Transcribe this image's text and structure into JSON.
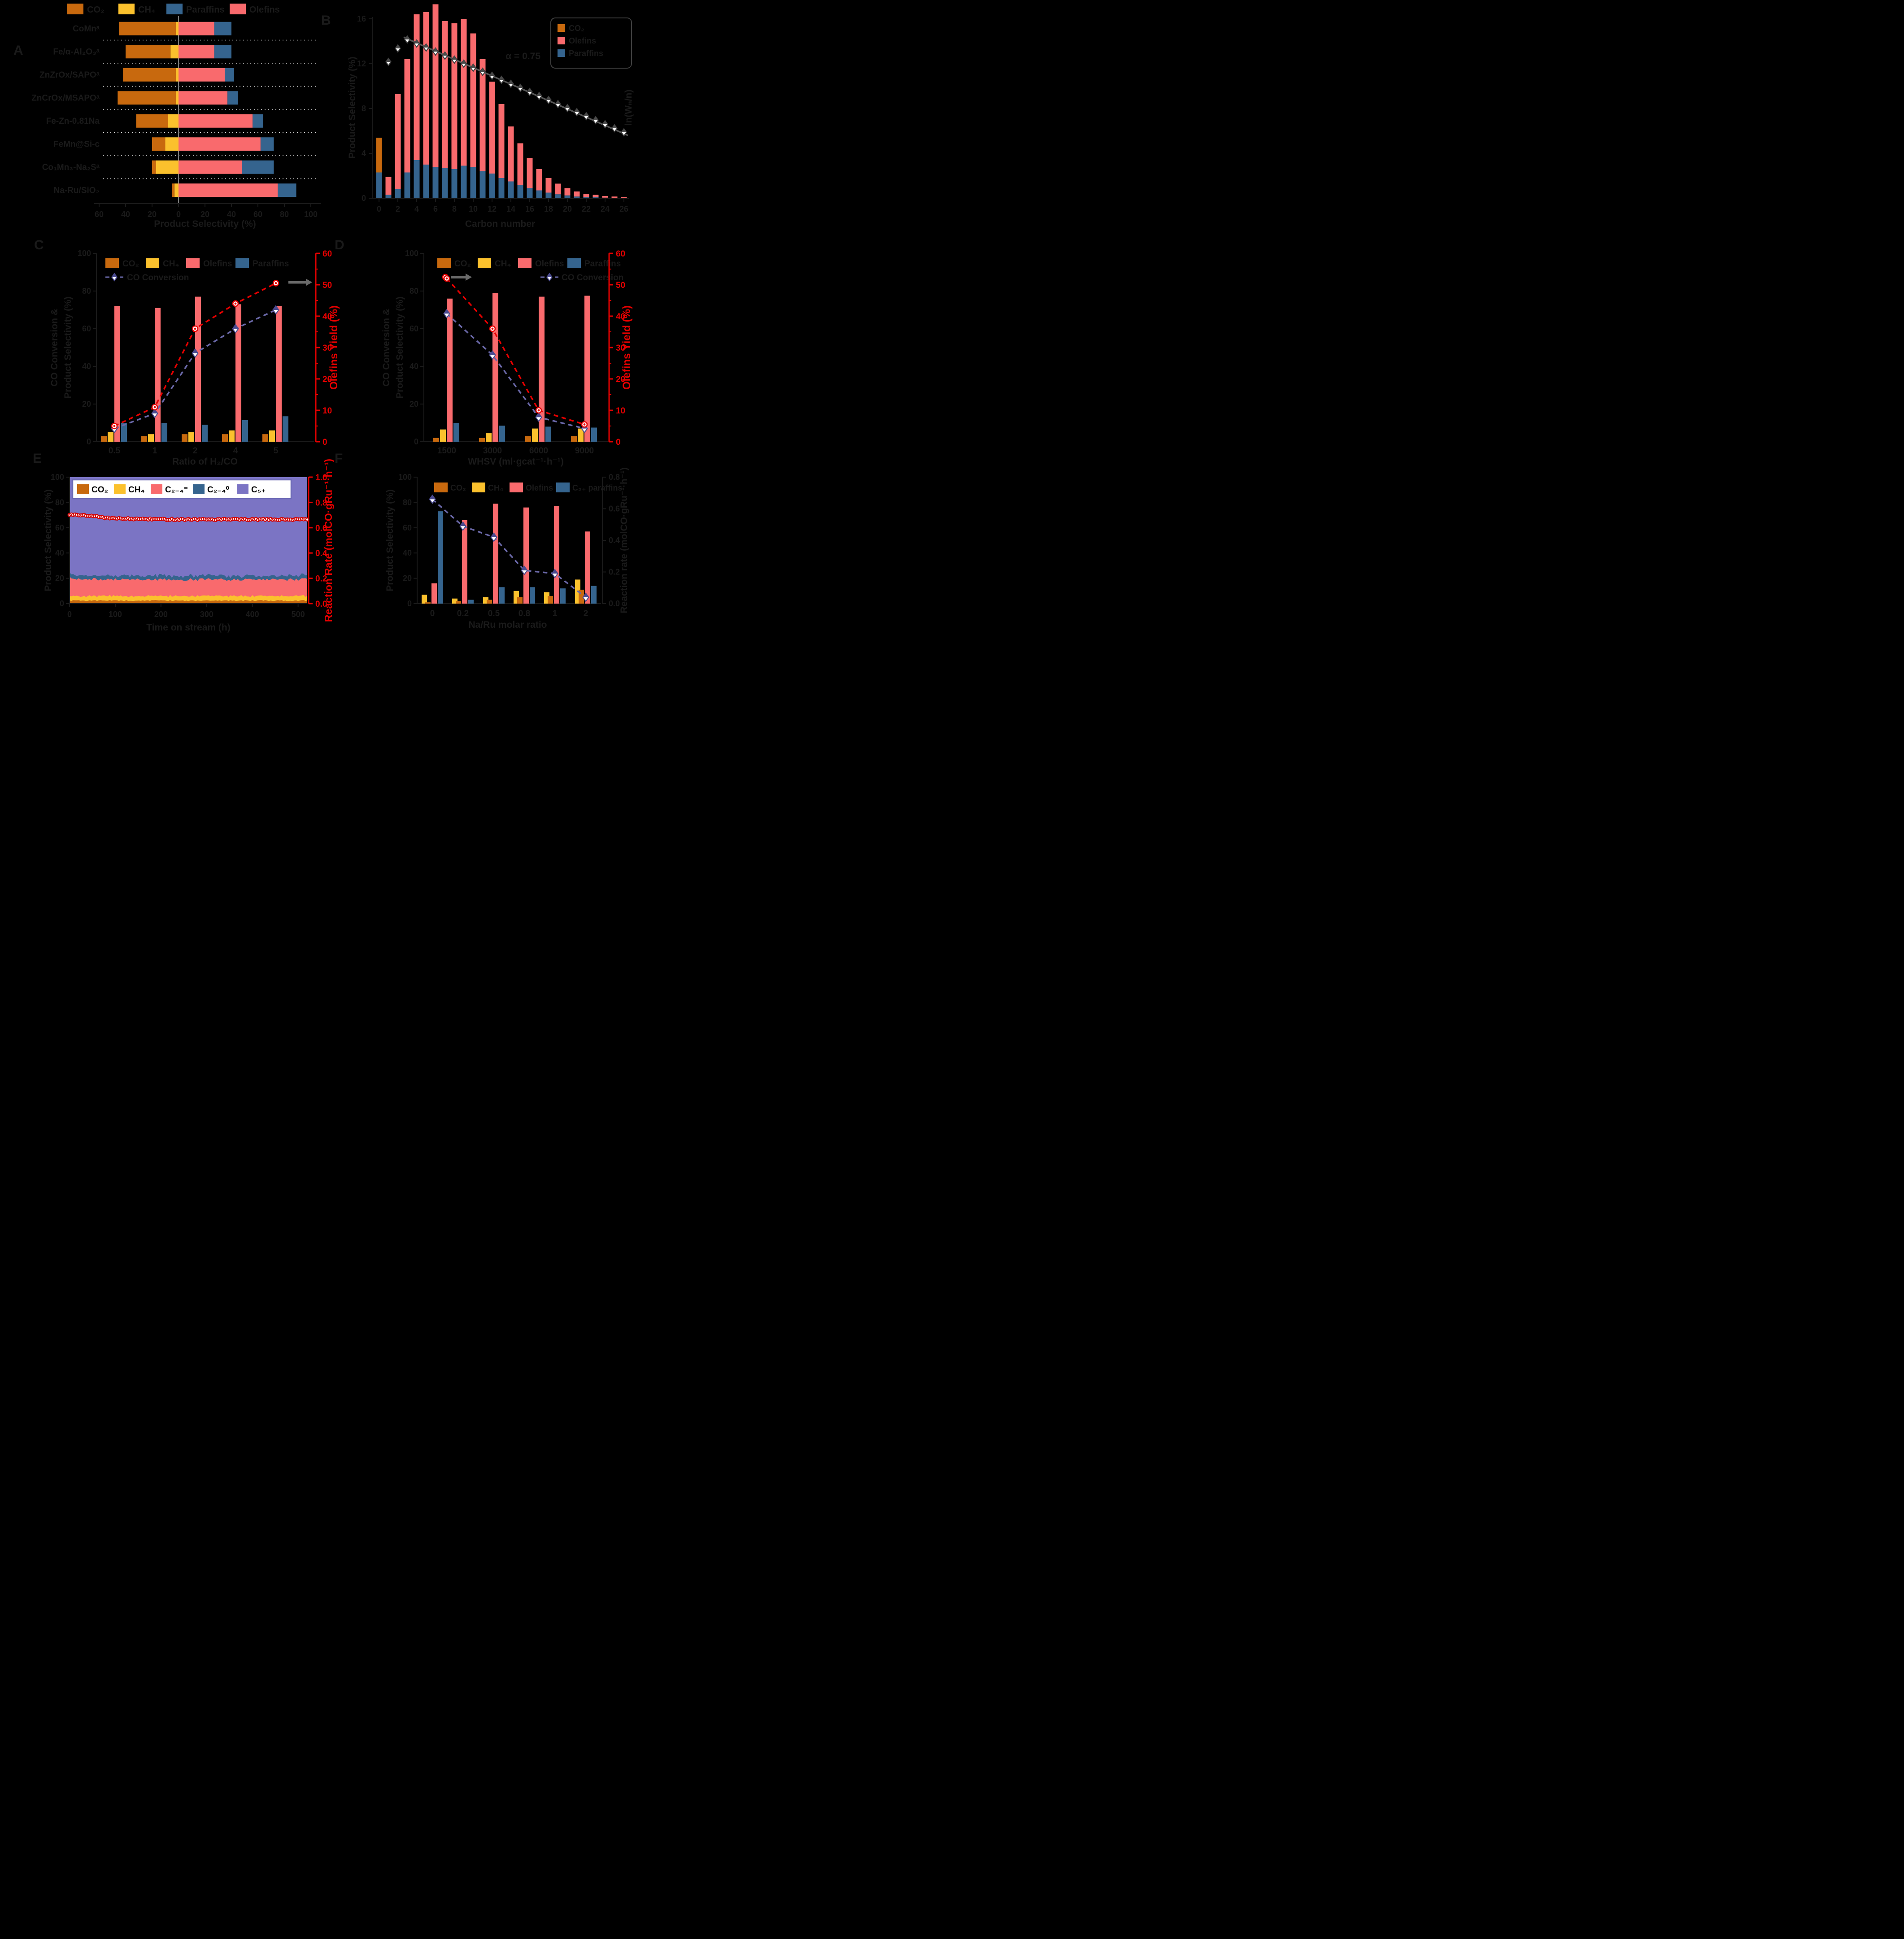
{
  "colors": {
    "co2": "#C8690E",
    "ch4": "#FBC12D",
    "olefins": "#F96A6D",
    "paraffins": "#35648E",
    "c5plus": "#7B74C4",
    "red": "#E60000",
    "navy": "#4A4A8F",
    "navy_line": "#6A68A8",
    "gray": "#5C5C5C",
    "asf_gray": "#555555",
    "separator": "#D8D8D8",
    "legend_box_border": "#6B69B5"
  },
  "panels": {
    "A": {
      "label": "A",
      "legend": [
        {
          "label": "CO₂",
          "color": "co2"
        },
        {
          "label": "CH₄",
          "color": "ch4"
        },
        {
          "label": "Paraffins",
          "color": "paraffins"
        },
        {
          "label": "Olefins",
          "color": "olefins"
        }
      ],
      "chart_data": {
        "type": "bar",
        "orientation": "horizontal-diverging",
        "xlabel": "Product Selectivity (%)",
        "x_ticks": [
          "60",
          "40",
          "20",
          "0",
          "20",
          "40",
          "60",
          "80",
          "100"
        ],
        "categories": [
          "CoMnᵃ",
          "Fe/α-Al₂O₃ᵃ",
          "ZnZrOx/SAPOᵃ",
          "ZnCrOx/MSAPOᵃ",
          "Fe-Zn-0.81Na",
          "FeMn@Si-c",
          "Co₁Mn₃-Na₂Sᵃ",
          "Na-Ru/SiO₂"
        ],
        "series": [
          {
            "name": "CO₂",
            "values": [
              43,
              34,
              40,
              44,
              24,
              10,
              3,
              2
            ]
          },
          {
            "name": "CH₄",
            "values": [
              2,
              6,
              2,
              2,
              8,
              10,
              17,
              3
            ]
          },
          {
            "name": "Olefins",
            "values": [
              27,
              27,
              35,
              37,
              56,
              62,
              48,
              75
            ]
          },
          {
            "name": "Paraffins",
            "values": [
              13,
              13,
              7,
              8,
              8,
              10,
              24,
              14
            ]
          }
        ]
      }
    },
    "B": {
      "label": "B",
      "legend": [
        {
          "label": "CO₂",
          "color": "co2"
        },
        {
          "label": "Olefins",
          "color": "olefins"
        },
        {
          "label": "Paraffins",
          "color": "paraffins"
        }
      ],
      "chart_data": {
        "type": "bar",
        "xlabel": "Carbon number",
        "ylabel": "Product Selectivity (%)",
        "right_label": "ln(Wₙ/n)",
        "y_ticks": [
          0,
          4,
          8,
          12,
          16
        ],
        "x_ticks": [
          0,
          2,
          4,
          6,
          8,
          10,
          12,
          14,
          16,
          18,
          20,
          22,
          24,
          26
        ],
        "co2_bar": {
          "x": 0,
          "total": 5.4,
          "paraffins_part": 2.3
        },
        "carbon_numbers": [
          1,
          2,
          3,
          4,
          5,
          6,
          7,
          8,
          9,
          10,
          11,
          12,
          13,
          14,
          15,
          16,
          17,
          18,
          19,
          20,
          21,
          22,
          23,
          24,
          25,
          26
        ],
        "totals": [
          1.9,
          9.3,
          12.4,
          16.4,
          16.6,
          17.3,
          15.8,
          15.6,
          16.0,
          14.7,
          12.4,
          10.4,
          8.4,
          6.4,
          4.9,
          3.6,
          2.6,
          1.8,
          1.3,
          0.9,
          0.6,
          0.4,
          0.3,
          0.2,
          0.15,
          0.1
        ],
        "paraffins": [
          0.3,
          0.8,
          2.3,
          3.4,
          3.0,
          2.8,
          2.7,
          2.6,
          2.9,
          2.8,
          2.4,
          2.2,
          1.8,
          1.5,
          1.2,
          0.9,
          0.7,
          0.5,
          0.35,
          0.25,
          0.15,
          0.1,
          0.08,
          0.05,
          0.04,
          0.03
        ],
        "asf": {
          "annotation": "α = 0.75",
          "alpha": 0.75,
          "deviations": [
            {
              "n": 1,
              "dy": 50
            },
            {
              "n": 2,
              "dy": 20
            }
          ]
        }
      }
    },
    "C": {
      "label": "C",
      "legend": [
        {
          "label": "CO₂",
          "color": "co2"
        },
        {
          "label": "CH₄",
          "color": "ch4"
        },
        {
          "label": "Olefins",
          "color": "olefins"
        },
        {
          "label": "Paraffins",
          "color": "paraffins"
        }
      ],
      "line_legend": "CO Conversion",
      "chart_data": {
        "type": "grouped-bar+lines",
        "categories": [
          "0.5",
          "1",
          "2",
          "4",
          "5"
        ],
        "xlabel": "Ratio of H₂/CO",
        "left_label_1": "CO Conversion &",
        "left_label_2": "Product Selectivity (%)",
        "left_ticks": [
          0,
          20,
          40,
          60,
          80,
          100
        ],
        "right": {
          "label": "Olefins Yield (%)",
          "ticks": [
            0,
            10,
            20,
            30,
            40,
            50,
            60
          ]
        },
        "bars": {
          "co2": [
            3,
            3,
            4,
            4,
            4
          ],
          "ch4": [
            5,
            4,
            5,
            6,
            6
          ],
          "olefins": [
            72,
            71,
            77,
            73,
            72
          ],
          "paraffins": [
            10,
            10,
            9,
            11.5,
            13.5
          ]
        },
        "olefins_yield": [
          5,
          11,
          36,
          44,
          50.5
        ],
        "co_conversion": [
          7,
          15,
          47,
          60,
          70
        ]
      }
    },
    "D": {
      "label": "D",
      "legend": [
        {
          "label": "CO₂",
          "color": "co2"
        },
        {
          "label": "CH₄",
          "color": "ch4"
        },
        {
          "label": "Olefins",
          "color": "olefins"
        },
        {
          "label": "Paraffins",
          "color": "paraffins"
        }
      ],
      "line_legend": "CO Conversion",
      "chart_data": {
        "type": "grouped-bar+lines",
        "categories": [
          "1500",
          "3000",
          "6000",
          "9000"
        ],
        "xlabel": "WHSV (ml·gcat⁻¹·h⁻¹)",
        "left_label_1": "CO Conversion &",
        "left_label_2": "Product Selectivity (%)",
        "left_ticks": [
          0,
          20,
          40,
          60,
          80,
          100
        ],
        "right": {
          "label": "Olefins Yield (%)",
          "ticks": [
            0,
            10,
            20,
            30,
            40,
            50,
            60
          ]
        },
        "bars": {
          "co2": [
            2,
            2,
            3,
            3
          ],
          "ch4": [
            6.5,
            4.5,
            7,
            7
          ],
          "olefins": [
            76,
            79,
            77,
            77.5
          ],
          "paraffins": [
            10,
            8.5,
            8,
            7.5
          ]
        },
        "olefins_yield": [
          52,
          36,
          10,
          5.5
        ],
        "co_conversion": [
          68,
          46,
          13,
          7
        ]
      }
    },
    "E": {
      "label": "E",
      "legend": [
        {
          "label": "CO₂",
          "color": "co2"
        },
        {
          "label": "CH₄",
          "color": "ch4"
        },
        {
          "label": "C₂₋₄⁼",
          "color": "olefins"
        },
        {
          "label": "C₂₋₄⁰",
          "color": "paraffins"
        },
        {
          "label": "C₅₊",
          "color": "c5plus"
        }
      ],
      "chart_data": {
        "type": "area+scatter",
        "xlabel": "Time on stream (h)",
        "ylabel": "Product Selectivity (%)",
        "x_ticks": [
          0,
          100,
          200,
          300,
          400,
          500
        ],
        "x_range": [
          0,
          520
        ],
        "left_ticks": [
          0,
          20,
          40,
          60,
          80,
          100
        ],
        "right": {
          "label": "Reaction Rate (molCO·gRu⁻¹·h⁻¹)",
          "ticks": [
            "0.0",
            "0.2",
            "0.4",
            "0.6",
            "0.8",
            "1.0"
          ]
        },
        "layers": [
          {
            "name": "CO₂",
            "color": "co2",
            "top": 2.4
          },
          {
            "name": "CH₄",
            "color": "ch4",
            "top": 6.0
          },
          {
            "name": "C₂₋₄⁼",
            "color": "olefins",
            "top": 19.0
          },
          {
            "name": "C₂₋₄⁰",
            "color": "paraffins",
            "top": 22.0
          },
          {
            "name": "C₅₊",
            "color": "c5plus",
            "top": 100
          }
        ],
        "rate": {
          "start": 0.7,
          "end": 0.665
        }
      }
    },
    "F": {
      "label": "F",
      "legend": [
        {
          "label": "CO₂",
          "color": "co2"
        },
        {
          "label": "CH₄",
          "color": "ch4"
        },
        {
          "label": "Olefins",
          "color": "olefins"
        },
        {
          "label": "C₂₊ paraffins",
          "color": "paraffins"
        }
      ],
      "chart_data": {
        "type": "grouped-bar+line",
        "categories": [
          "0",
          "0.2",
          "0.5",
          "0.8",
          "1",
          "2"
        ],
        "xlabel": "Na/Ru molar ratio",
        "ylabel": "Product Selectivity (%)",
        "left_ticks": [
          0,
          20,
          40,
          60,
          80,
          100
        ],
        "right": {
          "label": "Reaction rate (molCO·gRu⁻¹·h⁻¹)",
          "ticks": [
            "0.0",
            "0.2",
            "0.4",
            "0.6",
            "0.8"
          ],
          "max": 0.8
        },
        "bars": {
          "ch4": [
            7,
            4,
            5,
            10,
            9,
            19
          ],
          "co2": [
            1,
            2,
            3,
            5,
            6,
            11
          ],
          "olefins": [
            16,
            66,
            79,
            76,
            77,
            57
          ],
          "paraffins": [
            73,
            3,
            13,
            13,
            12,
            14
          ]
        },
        "rate_line": [
          0.66,
          0.49,
          0.42,
          0.21,
          0.19,
          0.04
        ]
      }
    }
  }
}
